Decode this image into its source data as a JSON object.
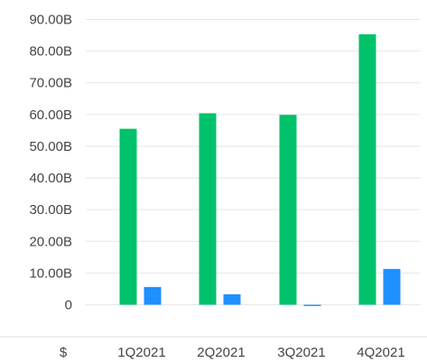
{
  "chart_data": {
    "type": "bar",
    "title": "",
    "xlabel": "",
    "ylabel": "",
    "currency_label": "$",
    "categories": [
      "1Q2021",
      "2Q2021",
      "3Q2021",
      "4Q2021"
    ],
    "series": [
      {
        "values": [
          55.5,
          60.4,
          59.9,
          85.3
        ],
        "color": "#00c26a"
      },
      {
        "values": [
          5.6,
          3.3,
          -0.4,
          11.3
        ],
        "color": "#1e90ff"
      }
    ],
    "ylim": [
      0,
      90
    ],
    "yticks": [
      0,
      10,
      20,
      30,
      40,
      50,
      60,
      70,
      80,
      90
    ],
    "ytick_labels": [
      "0",
      "10.00B",
      "20.00B",
      "30.00B",
      "40.00B",
      "50.00B",
      "60.00B",
      "70.00B",
      "80.00B",
      "90.00B"
    ],
    "grid": true,
    "legend": "none"
  }
}
